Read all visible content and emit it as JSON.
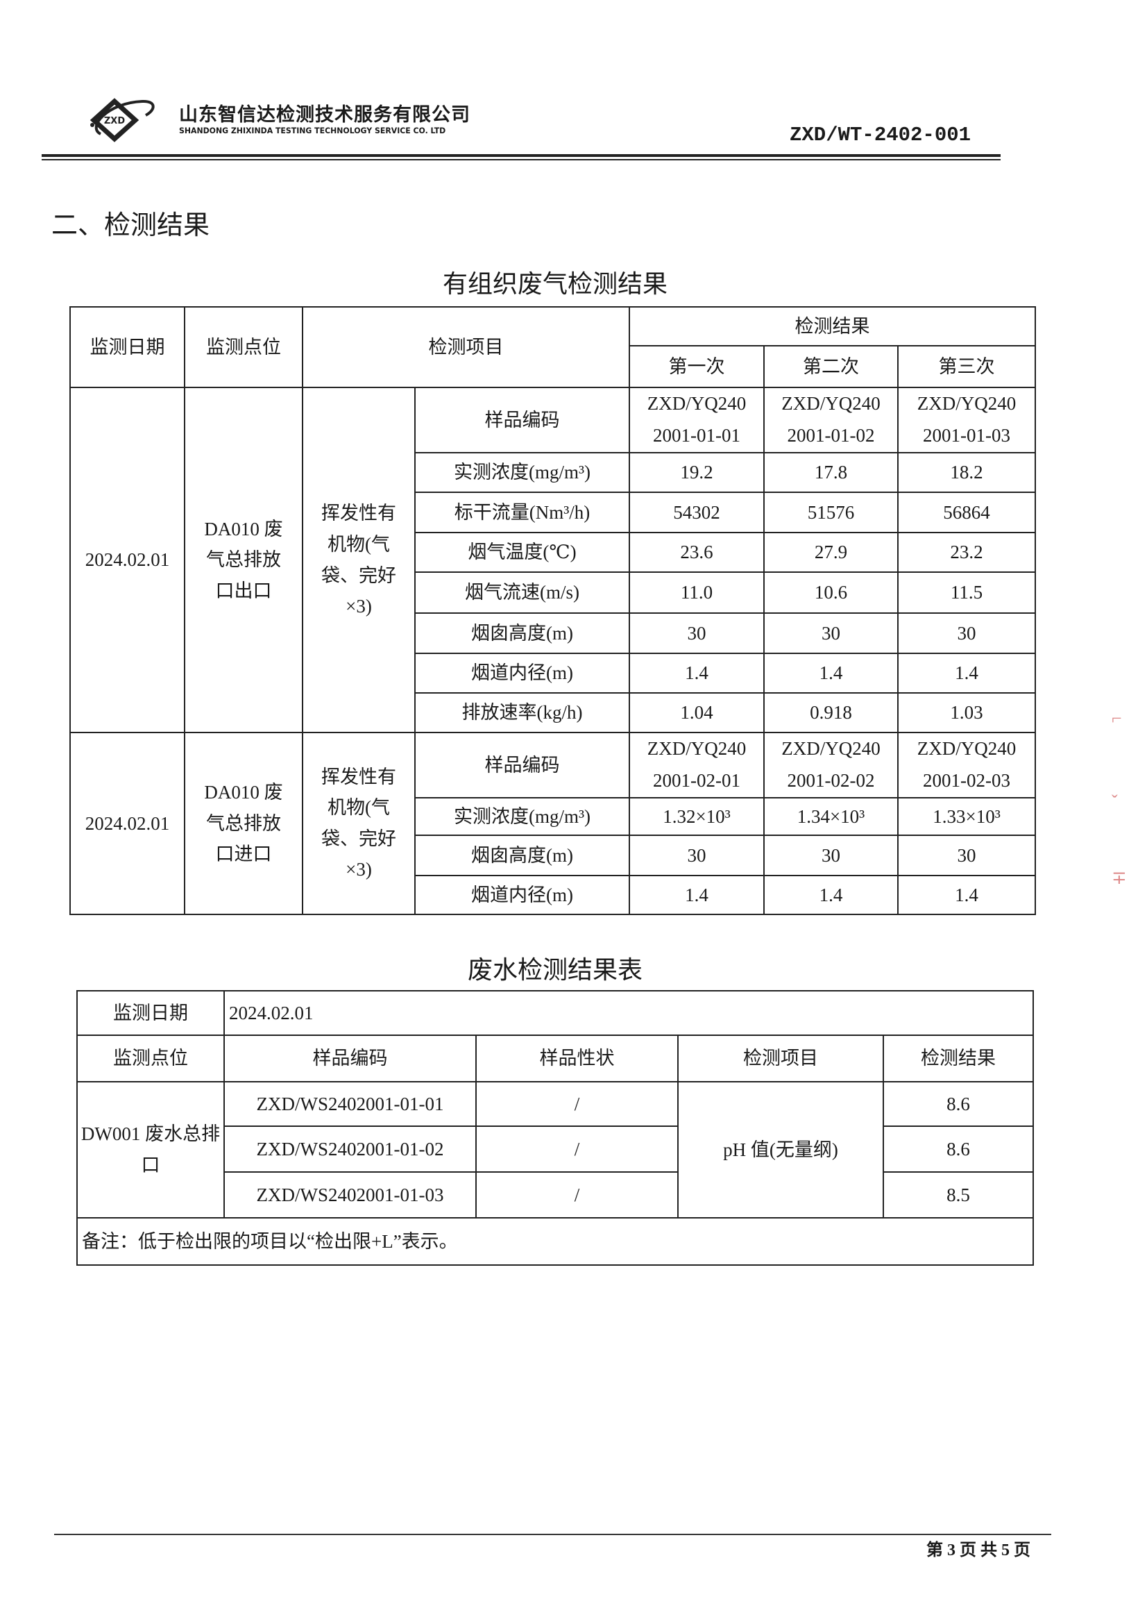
{
  "header": {
    "company_cn": "山东智信达检测技术服务有限公司",
    "company_en": "SHANDONG ZHIXINDA TESTING TECHNOLOGY SERVICE CO. LTD",
    "logo_text": "ZXD",
    "doc_number": "ZXD/WT-2402-001"
  },
  "section_title": "二、检测结果",
  "gas_table": {
    "title": "有组织废气检测结果",
    "headers": {
      "date": "监测日期",
      "point": "监测点位",
      "item": "检测项目",
      "result": "检测结果",
      "runs": [
        "第一次",
        "第二次",
        "第三次"
      ]
    },
    "groups": [
      {
        "date": "2024.02.01",
        "point": "DA010 废气总排放口出口",
        "item": "挥发性有机物(气袋、完好×3)",
        "rows": [
          {
            "param": "样品编码",
            "values": [
              "ZXD/YQ240 2001-01-01",
              "ZXD/YQ240 2001-01-02",
              "ZXD/YQ240 2001-01-03"
            ]
          },
          {
            "param": "实测浓度(mg/m³)",
            "values": [
              "19.2",
              "17.8",
              "18.2"
            ]
          },
          {
            "param": "标干流量(Nm³/h)",
            "values": [
              "54302",
              "51576",
              "56864"
            ]
          },
          {
            "param": "烟气温度(℃)",
            "values": [
              "23.6",
              "27.9",
              "23.2"
            ]
          },
          {
            "param": "烟气流速(m/s)",
            "values": [
              "11.0",
              "10.6",
              "11.5"
            ]
          },
          {
            "param": "烟囱高度(m)",
            "values": [
              "30",
              "30",
              "30"
            ]
          },
          {
            "param": "烟道内径(m)",
            "values": [
              "1.4",
              "1.4",
              "1.4"
            ]
          },
          {
            "param": "排放速率(kg/h)",
            "values": [
              "1.04",
              "0.918",
              "1.03"
            ]
          }
        ]
      },
      {
        "date": "2024.02.01",
        "point": "DA010 废气总排放口进口",
        "item": "挥发性有机物(气袋、完好×3)",
        "rows": [
          {
            "param": "样品编码",
            "values": [
              "ZXD/YQ240 2001-02-01",
              "ZXD/YQ240 2001-02-02",
              "ZXD/YQ240 2001-02-03"
            ]
          },
          {
            "param": "实测浓度(mg/m³)",
            "values": [
              "1.32×10³",
              "1.34×10³",
              "1.33×10³"
            ]
          },
          {
            "param": "烟囱高度(m)",
            "values": [
              "30",
              "30",
              "30"
            ]
          },
          {
            "param": "烟道内径(m)",
            "values": [
              "1.4",
              "1.4",
              "1.4"
            ]
          }
        ]
      }
    ]
  },
  "water_table": {
    "title": "废水检测结果表",
    "date_label": "监测日期",
    "date_value": "2024.02.01",
    "headers": [
      "监测点位",
      "样品编码",
      "样品性状",
      "检测项目",
      "检测结果"
    ],
    "point": "DW001 废水总排口",
    "item": "pH 值(无量纲)",
    "rows": [
      {
        "code": "ZXD/WS2402001-01-01",
        "state": "/",
        "result": "8.6"
      },
      {
        "code": "ZXD/WS2402001-01-02",
        "state": "/",
        "result": "8.6"
      },
      {
        "code": "ZXD/WS2402001-01-03",
        "state": "/",
        "result": "8.5"
      }
    ],
    "note": "备注：低于检出限的项目以“检出限+L”表示。"
  },
  "footer": {
    "page": "第 3 页 共 5 页"
  }
}
